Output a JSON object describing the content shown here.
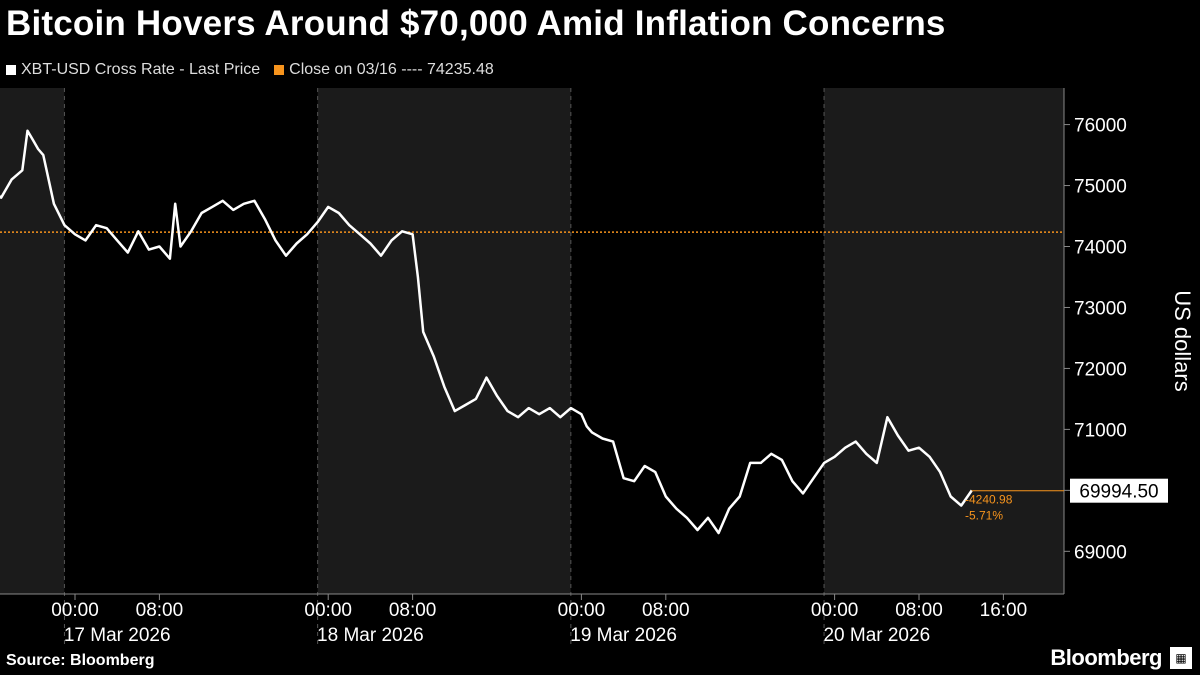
{
  "header": {
    "title": "Bitcoin Hovers Around $70,000 Amid Inflation Concerns"
  },
  "legend": {
    "items": [
      {
        "label": "XBT-USD Cross Rate - Last Price",
        "color": "#ffffff"
      },
      {
        "label": "Close on 03/16 ---- 74235.48",
        "color": "#f7941d"
      }
    ]
  },
  "footer": {
    "source": "Source: Bloomberg",
    "brand": "Bloomberg"
  },
  "chart_data": {
    "type": "line",
    "ylabel": "US dollars",
    "ylim": [
      68300,
      76600
    ],
    "yticks": [
      69000,
      70000,
      71000,
      72000,
      73000,
      74000,
      75000,
      76000
    ],
    "xlim_hours": [
      -10,
      77
    ],
    "xticks": [
      {
        "h": 0,
        "time": "00:00",
        "date": "17 Mar 2026"
      },
      {
        "h": 8,
        "time": "08:00",
        "date": ""
      },
      {
        "h": 24,
        "time": "00:00",
        "date": "18 Mar 2026"
      },
      {
        "h": 32,
        "time": "08:00",
        "date": ""
      },
      {
        "h": 48,
        "time": "00:00",
        "date": "19 Mar 2026"
      },
      {
        "h": 56,
        "time": "08:00",
        "date": ""
      },
      {
        "h": 72,
        "time": "00:00",
        "date": "20 Mar 2026"
      },
      {
        "h": 80,
        "time": "08:00",
        "date": ""
      },
      {
        "h": 88,
        "time": "16:00",
        "date": ""
      }
    ],
    "reference_line": {
      "value": 74235.48,
      "label": "Close on 03/16",
      "color": "#f7941d"
    },
    "last_value": {
      "value": "69994.50",
      "change": "-4240.98",
      "change_pct": "-5.71%"
    },
    "series": [
      {
        "name": "XBT-USD Cross Rate - Last Price",
        "points": [
          [
            -10,
            74500
          ],
          [
            -9,
            74700
          ],
          [
            -8,
            74950
          ],
          [
            -7,
            74800
          ],
          [
            -6,
            75100
          ],
          [
            -5,
            75250
          ],
          [
            -4.5,
            75900
          ],
          [
            -4,
            75750
          ],
          [
            -3.5,
            75600
          ],
          [
            -3,
            75500
          ],
          [
            -2,
            74700
          ],
          [
            -1,
            74350
          ],
          [
            0,
            74200
          ],
          [
            1,
            74100
          ],
          [
            2,
            74350
          ],
          [
            3,
            74300
          ],
          [
            4,
            74100
          ],
          [
            5,
            73900
          ],
          [
            6,
            74250
          ],
          [
            7,
            73950
          ],
          [
            8,
            74000
          ],
          [
            9,
            73800
          ],
          [
            9.5,
            74700
          ],
          [
            10,
            74000
          ],
          [
            11,
            74250
          ],
          [
            12,
            74550
          ],
          [
            13,
            74650
          ],
          [
            14,
            74750
          ],
          [
            15,
            74600
          ],
          [
            16,
            74700
          ],
          [
            17,
            74750
          ],
          [
            18,
            74450
          ],
          [
            19,
            74100
          ],
          [
            20,
            73850
          ],
          [
            21,
            74050
          ],
          [
            22,
            74200
          ],
          [
            23,
            74400
          ],
          [
            24,
            74650
          ],
          [
            25,
            74550
          ],
          [
            26,
            74350
          ],
          [
            27,
            74200
          ],
          [
            28,
            74050
          ],
          [
            29,
            73850
          ],
          [
            30,
            74100
          ],
          [
            31,
            74250
          ],
          [
            32,
            74200
          ],
          [
            32.5,
            73500
          ],
          [
            33,
            72600
          ],
          [
            34,
            72200
          ],
          [
            35,
            71700
          ],
          [
            36,
            71300
          ],
          [
            37,
            71400
          ],
          [
            38,
            71500
          ],
          [
            39,
            71850
          ],
          [
            40,
            71550
          ],
          [
            41,
            71300
          ],
          [
            42,
            71200
          ],
          [
            43,
            71350
          ],
          [
            44,
            71250
          ],
          [
            45,
            71350
          ],
          [
            46,
            71200
          ],
          [
            47,
            71350
          ],
          [
            48,
            71250
          ],
          [
            48.5,
            71050
          ],
          [
            49,
            70950
          ],
          [
            50,
            70850
          ],
          [
            51,
            70800
          ],
          [
            52,
            70200
          ],
          [
            53,
            70150
          ],
          [
            54,
            70400
          ],
          [
            55,
            70300
          ],
          [
            56,
            69900
          ],
          [
            57,
            69700
          ],
          [
            58,
            69550
          ],
          [
            59,
            69350
          ],
          [
            60,
            69550
          ],
          [
            61,
            69300
          ],
          [
            62,
            69700
          ],
          [
            63,
            69900
          ],
          [
            64,
            70450
          ],
          [
            65,
            70450
          ],
          [
            66,
            70600
          ],
          [
            67,
            70500
          ],
          [
            68,
            70150
          ],
          [
            69,
            69950
          ],
          [
            70,
            70200
          ],
          [
            71,
            70450
          ],
          [
            72,
            70550
          ],
          [
            73,
            70700
          ],
          [
            74,
            70800
          ],
          [
            75,
            70600
          ],
          [
            76,
            70450
          ],
          [
            77,
            71200
          ],
          [
            78,
            70900
          ],
          [
            79,
            70650
          ],
          [
            80,
            70700
          ],
          [
            81,
            70550
          ],
          [
            82,
            70300
          ],
          [
            83,
            69900
          ],
          [
            84,
            69750
          ],
          [
            85,
            70000
          ]
        ]
      }
    ]
  }
}
